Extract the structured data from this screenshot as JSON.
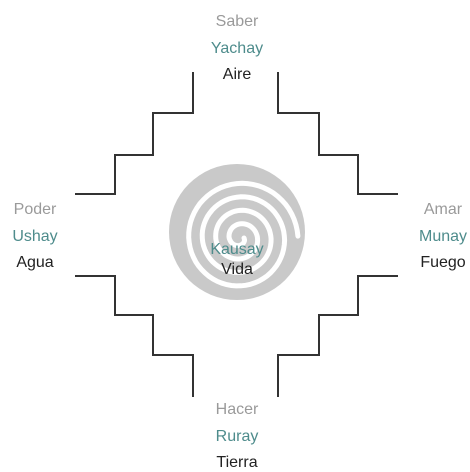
{
  "top": {
    "lines": [
      "Saber",
      "Yachay",
      "Aire"
    ]
  },
  "left": {
    "lines": [
      "Poder",
      "Ushay",
      "Agua"
    ]
  },
  "right": {
    "lines": [
      "Amar",
      "Munay",
      "Fuego"
    ]
  },
  "bottom": {
    "lines": [
      "Hacer",
      "Ruray",
      "Tierra"
    ]
  },
  "center": {
    "lines": [
      "Kausay",
      "Vida"
    ]
  }
}
